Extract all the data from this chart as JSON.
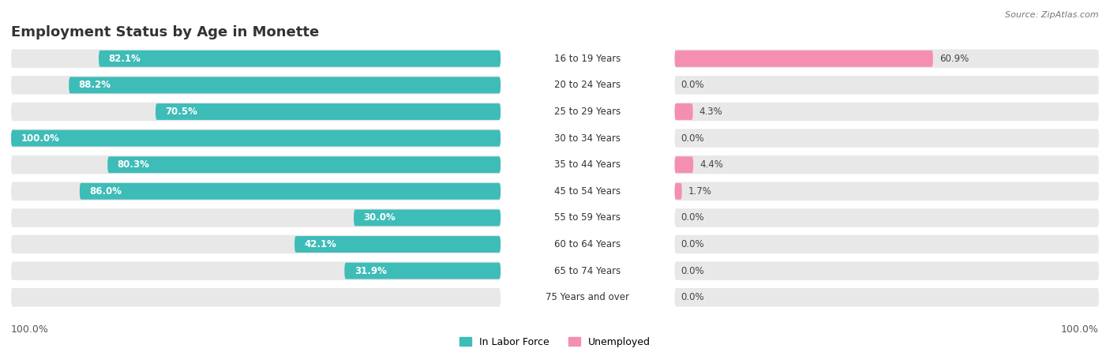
{
  "title": "Employment Status by Age in Monette",
  "source": "Source: ZipAtlas.com",
  "age_groups": [
    "16 to 19 Years",
    "20 to 24 Years",
    "25 to 29 Years",
    "30 to 34 Years",
    "35 to 44 Years",
    "45 to 54 Years",
    "55 to 59 Years",
    "60 to 64 Years",
    "65 to 74 Years",
    "75 Years and over"
  ],
  "labor_force": [
    82.1,
    88.2,
    70.5,
    100.0,
    80.3,
    86.0,
    30.0,
    42.1,
    31.9,
    0.0
  ],
  "unemployed": [
    60.9,
    0.0,
    4.3,
    0.0,
    4.4,
    1.7,
    0.0,
    0.0,
    0.0,
    0.0
  ],
  "labor_color": "#3dbcb8",
  "unemployed_color": "#f48fb1",
  "bar_bg_color": "#e8e8e8",
  "title_fontsize": 13,
  "label_fontsize": 9
}
